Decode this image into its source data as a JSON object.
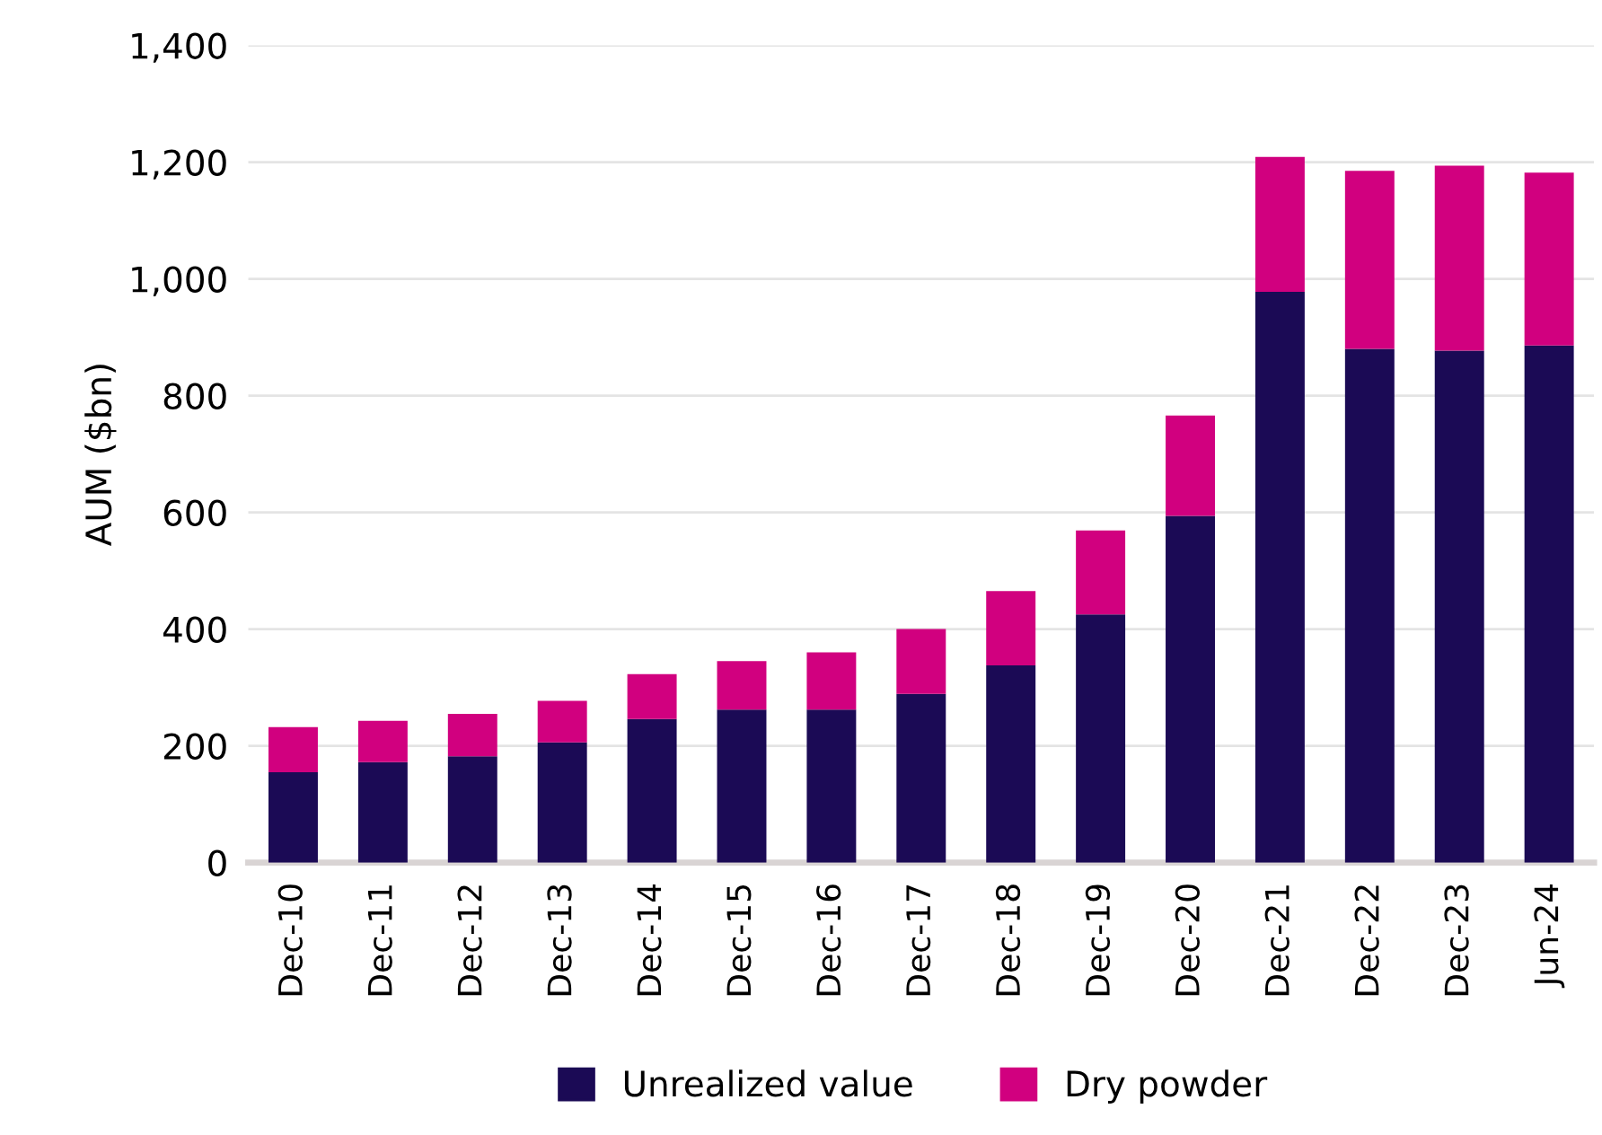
{
  "chart_data": {
    "type": "bar",
    "stacked": true,
    "ylabel": "AUM ($bn)",
    "categories": [
      "Dec-10",
      "Dec-11",
      "Dec-12",
      "Dec-13",
      "Dec-14",
      "Dec-15",
      "Dec-16",
      "Dec-17",
      "Dec-18",
      "Dec-19",
      "Dec-20",
      "Dec-21",
      "Dec-22",
      "Dec-23",
      "Jun-24"
    ],
    "series": [
      {
        "name": "Unrealized value",
        "color": "#1b0a55",
        "values": [
          155,
          172,
          182,
          206,
          246,
          262,
          262,
          289,
          338,
          425,
          594,
          978,
          880,
          877,
          886
        ]
      },
      {
        "name": "Dry powder",
        "color": "#d1007f",
        "values": [
          77,
          71,
          73,
          71,
          77,
          83,
          98,
          111,
          127,
          144,
          172,
          231,
          305,
          317,
          296
        ]
      }
    ],
    "ylim": [
      0,
      1400
    ],
    "yticks": [
      {
        "value": 0,
        "label": "0"
      },
      {
        "value": 200,
        "label": "200"
      },
      {
        "value": 400,
        "label": "400"
      },
      {
        "value": 600,
        "label": "600"
      },
      {
        "value": 800,
        "label": "800"
      },
      {
        "value": 1000,
        "label": "1,000"
      },
      {
        "value": 1200,
        "label": "1,200"
      },
      {
        "value": 1400,
        "label": "1,400"
      }
    ],
    "grid": "y",
    "legend": "bottom"
  }
}
